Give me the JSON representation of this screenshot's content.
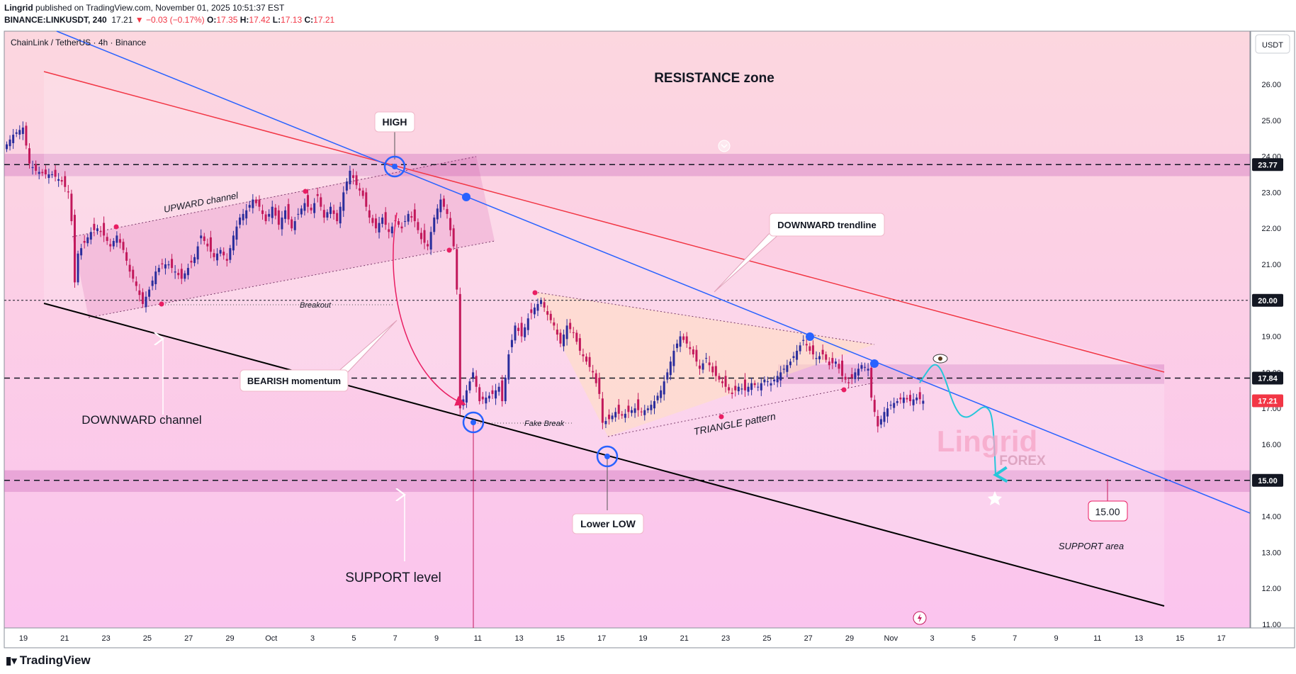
{
  "header": {
    "author": "Lingrid",
    "published_text": "published on TradingView.com, November 01, 2025 10:51:37 EST",
    "symbol": "BINANCE:LINKUSDT, 240",
    "last": "17.21",
    "change": "▼ −0.03 (−0.17%)",
    "o_label": "O:",
    "o": "17.35",
    "h_label": "H:",
    "h": "17.42",
    "l_label": "L:",
    "l": "17.13",
    "c_label": "C:",
    "c": "17.21"
  },
  "footer": {
    "brand": "TradingView"
  },
  "chart_data": {
    "type": "candlestick",
    "title": "ChainLink / TetherUS · 4h · Binance",
    "currency": "USDT",
    "ylim": [
      11,
      27
    ],
    "y_ticks": [
      "26.00",
      "25.00",
      "24.00",
      "23.00",
      "22.00",
      "21.00",
      "20.00",
      "19.00",
      "18.00",
      "17.00",
      "16.00",
      "15.00",
      "14.00",
      "13.00",
      "12.00",
      "11.00"
    ],
    "x_ticks": [
      "19",
      "21",
      "23",
      "25",
      "27",
      "29",
      "Oct",
      "3",
      "5",
      "7",
      "9",
      "11",
      "13",
      "15",
      "17",
      "19",
      "21",
      "23",
      "25",
      "27",
      "29",
      "Nov",
      "3",
      "5",
      "7",
      "9",
      "11",
      "13",
      "15",
      "17"
    ],
    "price_badges": [
      {
        "value": "23.77",
        "color": "#131722"
      },
      {
        "value": "20.00",
        "color": "#131722"
      },
      {
        "value": "17.84",
        "color": "#131722"
      },
      {
        "value": "17.21",
        "color": "#f23645"
      },
      {
        "value": "15.00",
        "color": "#131722"
      }
    ],
    "levels": [
      23.77,
      20.0,
      17.84,
      15.0
    ],
    "price_path": [
      [
        0,
        24.2
      ],
      [
        3,
        24.6
      ],
      [
        6,
        24.8
      ],
      [
        8,
        23.8
      ],
      [
        10,
        23.6
      ],
      [
        13,
        23.5
      ],
      [
        15,
        23.5
      ],
      [
        18,
        23.3
      ],
      [
        20,
        23.0
      ],
      [
        21,
        22.2
      ],
      [
        22,
        20.5
      ],
      [
        23,
        21.3
      ],
      [
        25,
        21.6
      ],
      [
        27,
        21.9
      ],
      [
        29,
        22.0
      ],
      [
        31,
        21.8
      ],
      [
        33,
        21.5
      ],
      [
        35,
        21.8
      ],
      [
        37,
        21.4
      ],
      [
        39,
        20.8
      ],
      [
        41,
        20.4
      ],
      [
        43,
        19.9
      ],
      [
        45,
        20.3
      ],
      [
        47,
        20.8
      ],
      [
        49,
        21.0
      ],
      [
        51,
        21.0
      ],
      [
        53,
        20.8
      ],
      [
        55,
        20.6
      ],
      [
        57,
        20.9
      ],
      [
        59,
        21.2
      ],
      [
        61,
        21.8
      ],
      [
        63,
        21.5
      ],
      [
        65,
        21.2
      ],
      [
        67,
        21.4
      ],
      [
        69,
        21.1
      ],
      [
        71,
        21.8
      ],
      [
        73,
        22.3
      ],
      [
        75,
        22.5
      ],
      [
        77,
        22.8
      ],
      [
        79,
        22.6
      ],
      [
        81,
        22.2
      ],
      [
        83,
        22.6
      ],
      [
        85,
        22.1
      ],
      [
        87,
        22.5
      ],
      [
        89,
        22.0
      ],
      [
        91,
        22.4
      ],
      [
        93,
        22.7
      ],
      [
        95,
        22.5
      ],
      [
        97,
        22.9
      ],
      [
        99,
        22.3
      ],
      [
        101,
        22.6
      ],
      [
        103,
        22.2
      ],
      [
        105,
        23.0
      ],
      [
        107,
        23.6
      ],
      [
        109,
        23.2
      ],
      [
        111,
        22.9
      ],
      [
        113,
        22.3
      ],
      [
        115,
        22.0
      ],
      [
        117,
        22.3
      ],
      [
        119,
        21.9
      ],
      [
        121,
        22.2
      ],
      [
        123,
        22.0
      ],
      [
        125,
        22.4
      ],
      [
        127,
        22.2
      ],
      [
        129,
        21.7
      ],
      [
        131,
        21.5
      ],
      [
        133,
        22.3
      ],
      [
        135,
        22.8
      ],
      [
        137,
        22.4
      ],
      [
        139,
        21.5
      ],
      [
        140,
        20.3
      ],
      [
        141,
        17.0
      ],
      [
        143,
        17.5
      ],
      [
        145,
        18.0
      ],
      [
        147,
        17.2
      ],
      [
        149,
        17.3
      ],
      [
        151,
        17.4
      ],
      [
        153,
        17.6
      ],
      [
        154,
        17.2
      ],
      [
        156,
        18.5
      ],
      [
        158,
        19.3
      ],
      [
        160,
        19.0
      ],
      [
        162,
        19.5
      ],
      [
        164,
        19.8
      ],
      [
        166,
        20.0
      ],
      [
        168,
        19.6
      ],
      [
        170,
        19.3
      ],
      [
        172,
        18.8
      ],
      [
        174,
        19.3
      ],
      [
        176,
        19.1
      ],
      [
        178,
        18.6
      ],
      [
        180,
        18.3
      ],
      [
        182,
        18.0
      ],
      [
        184,
        17.4
      ],
      [
        185,
        16.6
      ],
      [
        187,
        16.7
      ],
      [
        189,
        16.9
      ],
      [
        191,
        16.8
      ],
      [
        193,
        16.9
      ],
      [
        195,
        17.0
      ],
      [
        197,
        16.9
      ],
      [
        199,
        17.0
      ],
      [
        201,
        17.2
      ],
      [
        203,
        17.5
      ],
      [
        205,
        18.0
      ],
      [
        207,
        18.6
      ],
      [
        209,
        19.0
      ],
      [
        211,
        18.8
      ],
      [
        213,
        18.5
      ],
      [
        215,
        18.1
      ],
      [
        217,
        18.4
      ],
      [
        219,
        18.0
      ],
      [
        221,
        17.8
      ],
      [
        223,
        17.6
      ],
      [
        225,
        17.4
      ],
      [
        227,
        17.6
      ],
      [
        229,
        17.5
      ],
      [
        231,
        17.7
      ],
      [
        233,
        17.6
      ],
      [
        235,
        17.8
      ],
      [
        237,
        17.7
      ],
      [
        239,
        17.9
      ],
      [
        241,
        18.1
      ],
      [
        243,
        18.3
      ],
      [
        245,
        18.6
      ],
      [
        247,
        18.9
      ],
      [
        249,
        18.6
      ],
      [
        251,
        18.4
      ],
      [
        253,
        18.5
      ],
      [
        255,
        18.2
      ],
      [
        257,
        18.3
      ],
      [
        259,
        17.9
      ],
      [
        261,
        17.7
      ],
      [
        263,
        18.0
      ],
      [
        265,
        18.2
      ],
      [
        267,
        18.1
      ],
      [
        268,
        17.3
      ],
      [
        270,
        16.5
      ],
      [
        272,
        16.9
      ],
      [
        274,
        17.1
      ],
      [
        276,
        17.2
      ],
      [
        278,
        17.3
      ],
      [
        280,
        17.2
      ],
      [
        282,
        17.3
      ],
      [
        284,
        17.21
      ]
    ]
  },
  "annotations": {
    "resistance": "RESISTANCE zone",
    "high": "HIGH",
    "upward": "UPWARD channel",
    "downward_trendline": "DOWNWARD trendline",
    "breakout": "Breakout",
    "bearish": "BEARISH momentum",
    "downward_channel": "DOWNWARD channel",
    "fake_break": "Fake Break",
    "triangle": "TRIANGLE pattern",
    "lower_low": "Lower LOW",
    "support_level": "SUPPORT level",
    "support_area": "SUPPORT area",
    "target": "15.00",
    "watermark_main": "Lingrid",
    "watermark_sub": "FOREX"
  }
}
